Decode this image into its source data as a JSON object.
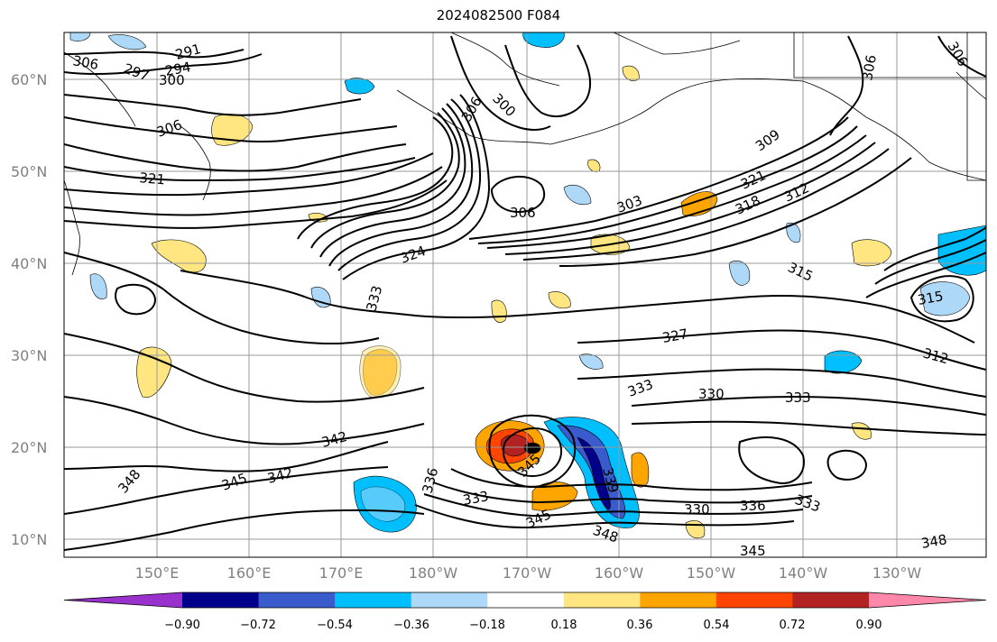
{
  "title": "2024082500 F084",
  "lat_labels": [
    "60°N",
    "50°N",
    "40°N",
    "30°N",
    "20°N",
    "10°N"
  ],
  "lon_labels": [
    "150°E",
    "160°E",
    "170°E",
    "180°W",
    "170°W",
    "160°W",
    "150°W",
    "140°W",
    "130°W"
  ],
  "colorbar": {
    "colors": [
      "#9932cc",
      "#00008b",
      "#3a5bcc",
      "#00bfff",
      "#add8f7",
      "#ffffff",
      "#ffe680",
      "#ffa500",
      "#ff4500",
      "#b22222",
      "#ff88aa"
    ],
    "tick_labels": [
      "−0.90",
      "−0.72",
      "−0.54",
      "−0.36",
      "−0.18",
      "0.18",
      "0.36",
      "0.54",
      "0.72",
      "0.90"
    ]
  },
  "contour_labels": [
    "291",
    "297",
    "294",
    "300",
    "306",
    "306",
    "300",
    "306",
    "306",
    "321",
    "306",
    "303",
    "309",
    "318",
    "321",
    "312",
    "315",
    "324",
    "333",
    "315",
    "327",
    "312",
    "333",
    "330",
    "333",
    "342",
    "336",
    "342",
    "345",
    "333",
    "345",
    "339",
    "330",
    "336",
    "333",
    "345",
    "348",
    "345",
    "348",
    "348",
    "306"
  ]
}
